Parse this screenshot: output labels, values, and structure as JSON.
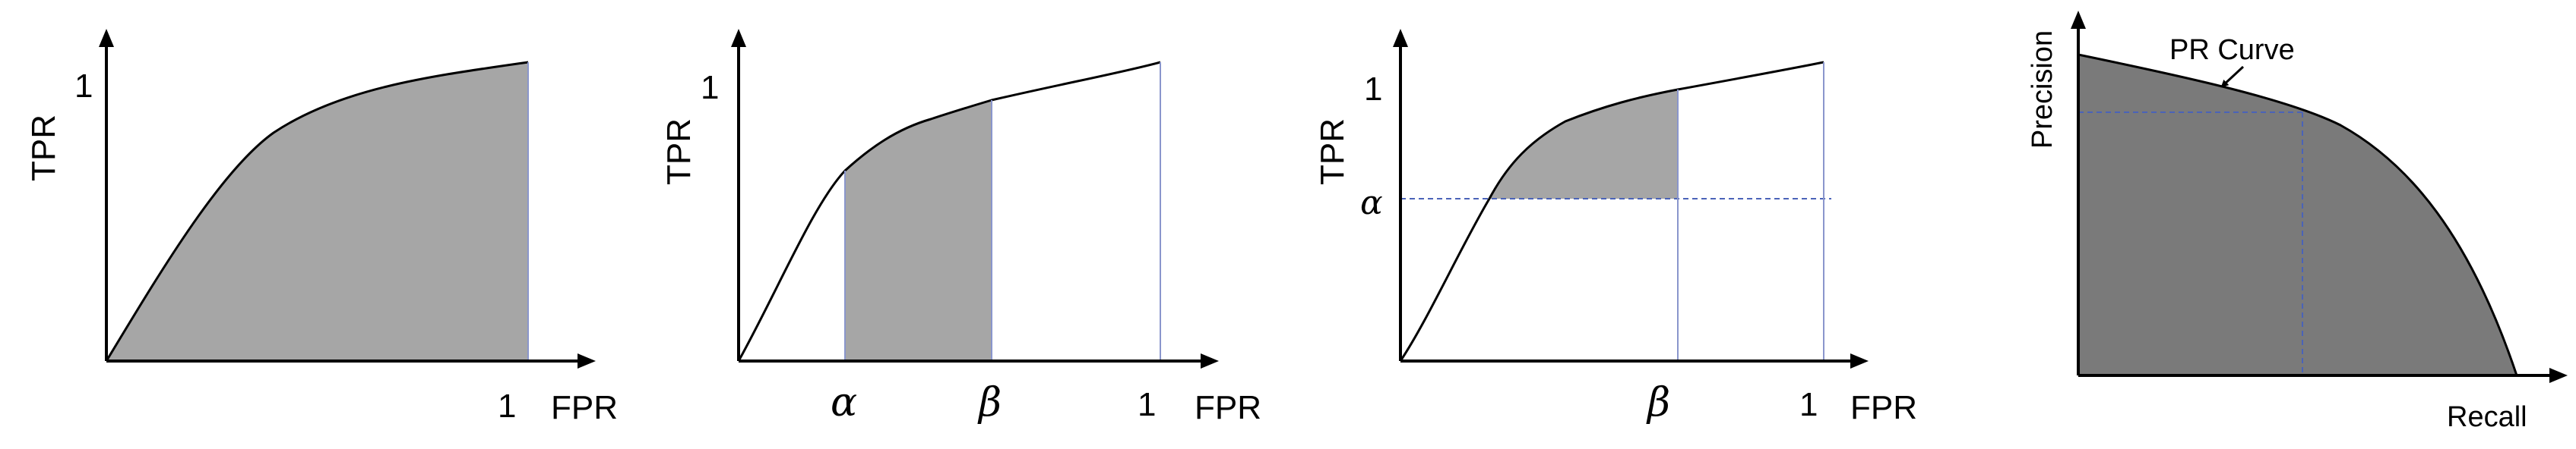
{
  "panels": [
    {
      "name": "full-auc",
      "y_axis_label": "TPR",
      "x_axis_label": "FPR",
      "y_tick": "1",
      "x_tick": "1",
      "shaded_region": "full area under ROC curve"
    },
    {
      "name": "partial-auc-fpr",
      "y_axis_label": "TPR",
      "x_axis_label": "FPR",
      "y_tick": "1",
      "x_tick": "1",
      "alpha_label": "α",
      "beta_label": "β",
      "shaded_region": "area under ROC curve between FPR = α and FPR = β"
    },
    {
      "name": "partial-auc-tpr",
      "y_axis_label": "TPR",
      "x_axis_label": "FPR",
      "y_tick": "1",
      "x_tick": "1",
      "alpha_label": "α",
      "beta_label": "β",
      "shaded_region": "area under ROC curve above TPR = α and left of FPR = β"
    },
    {
      "name": "pr-curve",
      "y_axis_label": "Precision",
      "x_axis_label": "Recall",
      "curve_label": "PR Curve",
      "shaded_region": "area under PR curve"
    }
  ],
  "colors": {
    "light_shade": "#a6a6a6",
    "dark_shade": "#7a7a7a",
    "guide": "#8a96cc",
    "dashed": "#4a63b8"
  }
}
